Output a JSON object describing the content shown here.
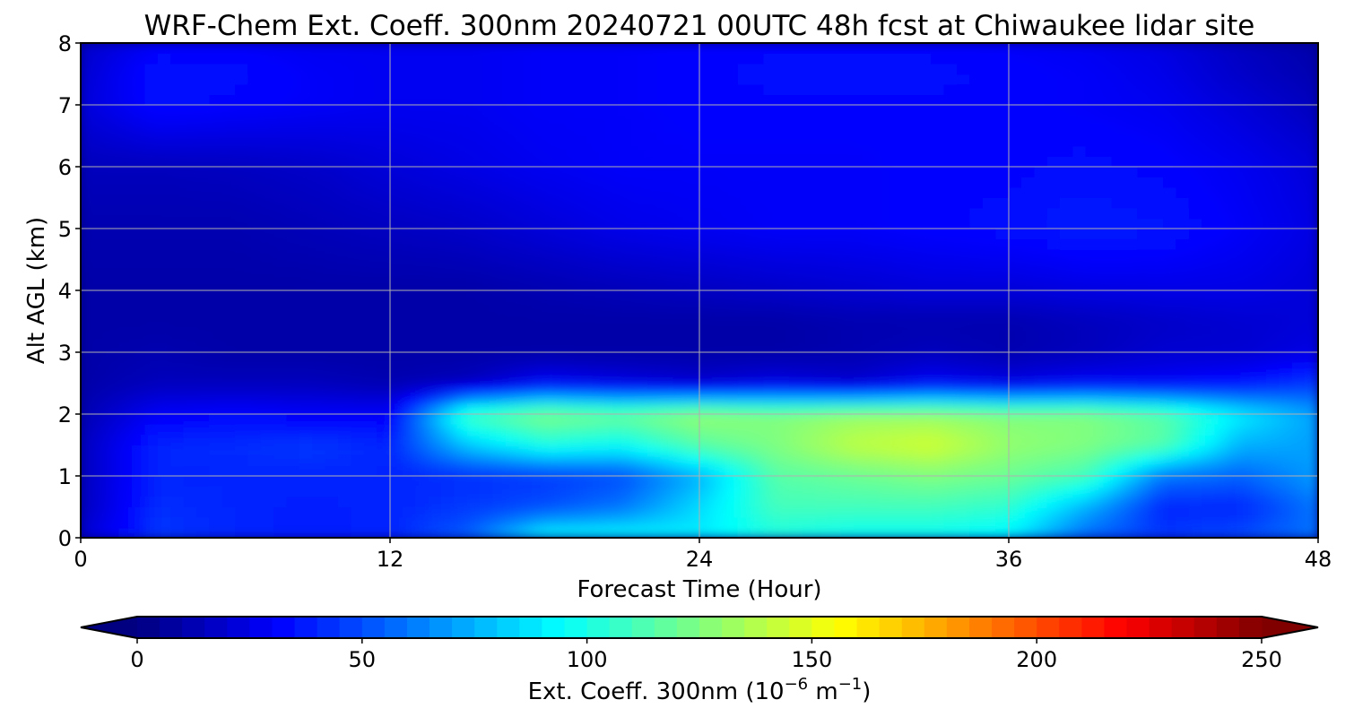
{
  "chart_data": {
    "type": "heatmap",
    "title": "WRF-Chem Ext. Coeff. 300nm  20240721 00UTC 48h fcst at Chiwaukee lidar site",
    "xlabel": "Forecast Time (Hour)",
    "ylabel": "Alt AGL (km)",
    "xlim": [
      0,
      48
    ],
    "ylim": [
      0,
      8
    ],
    "xticks": [
      "0",
      "12",
      "24",
      "36",
      "48"
    ],
    "yticks": [
      "0",
      "1",
      "2",
      "3",
      "4",
      "5",
      "6",
      "7",
      "8"
    ],
    "grid": true,
    "x": [
      0,
      3,
      6,
      9,
      12,
      15,
      18,
      21,
      24,
      27,
      30,
      33,
      36,
      39,
      42,
      45,
      48
    ],
    "y": [
      0,
      0.5,
      1,
      1.5,
      2,
      2.5,
      3,
      3.5,
      4,
      5,
      6,
      7,
      7.5,
      8
    ],
    "z": [
      [
        20,
        45,
        40,
        38,
        40,
        55,
        95,
        95,
        90,
        100,
        95,
        95,
        90,
        55,
        45,
        50,
        60
      ],
      [
        15,
        42,
        40,
        38,
        40,
        45,
        50,
        60,
        85,
        110,
        110,
        110,
        105,
        75,
        40,
        40,
        60
      ],
      [
        15,
        40,
        40,
        40,
        40,
        42,
        45,
        50,
        75,
        115,
        120,
        125,
        120,
        110,
        60,
        55,
        70
      ],
      [
        15,
        40,
        42,
        45,
        40,
        80,
        100,
        95,
        115,
        125,
        140,
        145,
        130,
        125,
        115,
        75,
        70
      ],
      [
        12,
        30,
        32,
        30,
        30,
        110,
        125,
        120,
        130,
        125,
        130,
        130,
        125,
        125,
        115,
        90,
        70
      ],
      [
        10,
        15,
        15,
        15,
        12,
        15,
        30,
        25,
        20,
        25,
        20,
        30,
        25,
        30,
        30,
        35,
        45
      ],
      [
        10,
        12,
        10,
        10,
        10,
        10,
        10,
        10,
        10,
        10,
        12,
        15,
        12,
        15,
        20,
        20,
        25
      ],
      [
        10,
        10,
        10,
        10,
        10,
        10,
        10,
        10,
        10,
        10,
        12,
        12,
        12,
        15,
        18,
        20,
        22
      ],
      [
        10,
        10,
        10,
        10,
        10,
        10,
        12,
        14,
        16,
        18,
        20,
        22,
        22,
        24,
        25,
        25,
        22
      ],
      [
        12,
        12,
        12,
        14,
        16,
        18,
        22,
        26,
        28,
        30,
        30,
        32,
        34,
        38,
        36,
        30,
        24
      ],
      [
        15,
        15,
        16,
        18,
        22,
        25,
        28,
        30,
        30,
        30,
        30,
        32,
        32,
        34,
        32,
        28,
        22
      ],
      [
        22,
        34,
        32,
        30,
        28,
        28,
        30,
        30,
        32,
        32,
        32,
        32,
        32,
        30,
        28,
        22,
        15
      ],
      [
        20,
        36,
        34,
        30,
        28,
        28,
        30,
        30,
        32,
        34,
        34,
        34,
        32,
        30,
        26,
        18,
        12
      ],
      [
        18,
        30,
        30,
        28,
        28,
        28,
        30,
        30,
        32,
        32,
        32,
        32,
        30,
        28,
        24,
        16,
        10
      ]
    ],
    "colorbar": {
      "label_main": "Ext. Coeff. 300nm  (10",
      "label_exp1": "−6",
      "label_mid": " m",
      "label_exp2": "−1",
      "label_end": ")",
      "range": [
        0,
        250
      ],
      "extend": "both",
      "ticks": [
        "0",
        "50",
        "100",
        "150",
        "200",
        "250"
      ],
      "colormap": "jet"
    }
  }
}
